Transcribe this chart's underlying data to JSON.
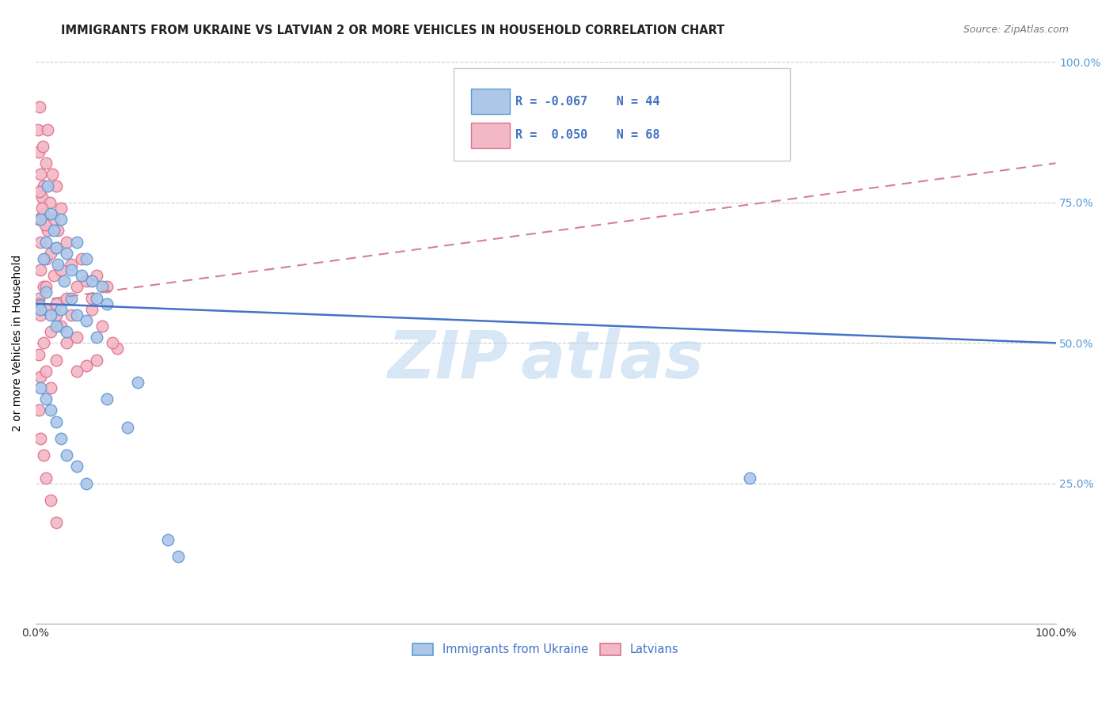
{
  "title": "IMMIGRANTS FROM UKRAINE VS LATVIAN 2 OR MORE VEHICLES IN HOUSEHOLD CORRELATION CHART",
  "source": "Source: ZipAtlas.com",
  "ylabel": "2 or more Vehicles in Household",
  "legend_blue_R": "R = -0.067",
  "legend_blue_N": "N = 44",
  "legend_pink_R": "R =  0.050",
  "legend_pink_N": "N = 68",
  "legend_blue_label": "Immigrants from Ukraine",
  "legend_pink_label": "Latvians",
  "blue_fill": "#aec6e8",
  "pink_fill": "#f2b8c6",
  "blue_edge": "#5b9bd5",
  "pink_edge": "#e07090",
  "blue_line_color": "#4472c4",
  "pink_line_color": "#d48090",
  "tick_color": "#5b9bd5",
  "blue_scatter": [
    [
      0.3,
      57.0
    ],
    [
      0.5,
      72.0
    ],
    [
      0.8,
      65.0
    ],
    [
      1.0,
      68.0
    ],
    [
      1.2,
      78.0
    ],
    [
      1.5,
      73.0
    ],
    [
      1.8,
      70.0
    ],
    [
      2.0,
      67.0
    ],
    [
      2.2,
      64.0
    ],
    [
      2.5,
      72.0
    ],
    [
      2.8,
      61.0
    ],
    [
      3.0,
      66.0
    ],
    [
      3.5,
      63.0
    ],
    [
      4.0,
      68.0
    ],
    [
      4.5,
      62.0
    ],
    [
      5.0,
      65.0
    ],
    [
      5.5,
      61.0
    ],
    [
      6.0,
      58.0
    ],
    [
      6.5,
      60.0
    ],
    [
      7.0,
      57.0
    ],
    [
      0.5,
      56.0
    ],
    [
      1.0,
      59.0
    ],
    [
      1.5,
      55.0
    ],
    [
      2.0,
      53.0
    ],
    [
      2.5,
      56.0
    ],
    [
      3.0,
      52.0
    ],
    [
      3.5,
      58.0
    ],
    [
      4.0,
      55.0
    ],
    [
      5.0,
      54.0
    ],
    [
      6.0,
      51.0
    ],
    [
      0.5,
      42.0
    ],
    [
      1.0,
      40.0
    ],
    [
      1.5,
      38.0
    ],
    [
      2.0,
      36.0
    ],
    [
      2.5,
      33.0
    ],
    [
      3.0,
      30.0
    ],
    [
      4.0,
      28.0
    ],
    [
      5.0,
      25.0
    ],
    [
      7.0,
      40.0
    ],
    [
      9.0,
      35.0
    ],
    [
      70.0,
      26.0
    ],
    [
      13.0,
      15.0
    ],
    [
      14.0,
      12.0
    ],
    [
      10.0,
      43.0
    ]
  ],
  "pink_scatter": [
    [
      0.2,
      88.0
    ],
    [
      0.3,
      84.0
    ],
    [
      0.4,
      92.0
    ],
    [
      0.5,
      80.0
    ],
    [
      0.6,
      76.0
    ],
    [
      0.7,
      85.0
    ],
    [
      0.8,
      78.0
    ],
    [
      1.0,
      82.0
    ],
    [
      1.2,
      88.0
    ],
    [
      1.4,
      75.0
    ],
    [
      1.6,
      80.0
    ],
    [
      1.8,
      72.0
    ],
    [
      2.0,
      78.0
    ],
    [
      2.2,
      70.0
    ],
    [
      2.5,
      74.0
    ],
    [
      0.3,
      72.0
    ],
    [
      0.5,
      68.0
    ],
    [
      0.8,
      73.0
    ],
    [
      1.0,
      65.0
    ],
    [
      1.2,
      70.0
    ],
    [
      1.5,
      66.0
    ],
    [
      1.8,
      62.0
    ],
    [
      2.0,
      67.0
    ],
    [
      2.5,
      63.0
    ],
    [
      3.0,
      68.0
    ],
    [
      3.5,
      64.0
    ],
    [
      4.0,
      60.0
    ],
    [
      4.5,
      65.0
    ],
    [
      5.0,
      61.0
    ],
    [
      5.5,
      58.0
    ],
    [
      6.0,
      62.0
    ],
    [
      7.0,
      60.0
    ],
    [
      0.3,
      58.0
    ],
    [
      0.5,
      55.0
    ],
    [
      0.8,
      60.0
    ],
    [
      1.0,
      56.0
    ],
    [
      1.5,
      52.0
    ],
    [
      2.0,
      57.0
    ],
    [
      2.5,
      53.0
    ],
    [
      3.0,
      50.0
    ],
    [
      3.5,
      55.0
    ],
    [
      4.0,
      51.0
    ],
    [
      0.3,
      48.0
    ],
    [
      0.5,
      44.0
    ],
    [
      0.8,
      50.0
    ],
    [
      1.0,
      45.0
    ],
    [
      1.5,
      42.0
    ],
    [
      2.0,
      47.0
    ],
    [
      0.3,
      38.0
    ],
    [
      0.5,
      33.0
    ],
    [
      0.8,
      30.0
    ],
    [
      1.0,
      26.0
    ],
    [
      1.5,
      22.0
    ],
    [
      2.0,
      18.0
    ],
    [
      5.0,
      46.0
    ],
    [
      6.0,
      47.0
    ],
    [
      8.0,
      49.0
    ],
    [
      0.5,
      63.0
    ],
    [
      1.0,
      60.0
    ],
    [
      2.0,
      55.0
    ],
    [
      3.0,
      58.0
    ],
    [
      4.0,
      45.0
    ],
    [
      5.5,
      56.0
    ],
    [
      6.5,
      53.0
    ],
    [
      7.5,
      50.0
    ],
    [
      0.4,
      77.0
    ],
    [
      0.6,
      74.0
    ],
    [
      0.9,
      71.0
    ]
  ],
  "xmin": 0,
  "xmax": 100,
  "ymin": 0,
  "ymax": 100,
  "blue_line_x": [
    0,
    100
  ],
  "blue_line_y": [
    57.0,
    50.0
  ],
  "pink_line_x": [
    0,
    100
  ],
  "pink_line_y": [
    57.5,
    82.0
  ]
}
